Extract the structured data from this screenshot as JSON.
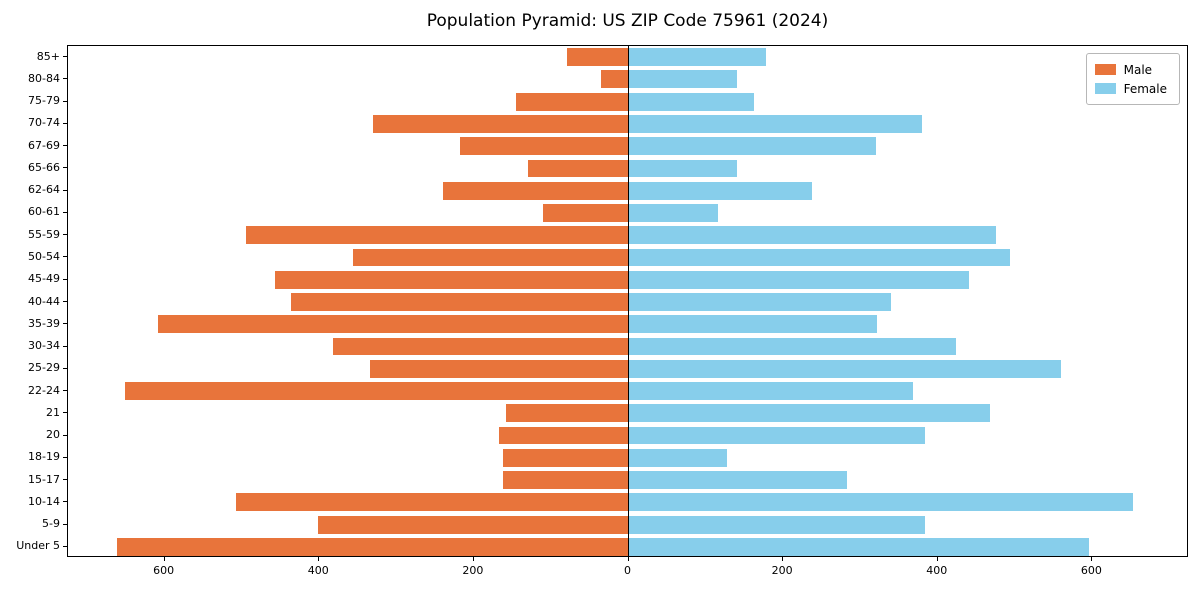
{
  "title": "Population Pyramid: US ZIP Code 75961 (2024)",
  "legend": {
    "male_label": "Male",
    "female_label": "Female"
  },
  "colors": {
    "male": "#e8743b",
    "female": "#87ceeb",
    "axis": "#000000",
    "background": "#ffffff"
  },
  "chart_data": {
    "type": "bar",
    "subtype": "population-pyramid",
    "orientation": "horizontal",
    "title": "Population Pyramid: US ZIP Code 75961 (2024)",
    "xlabel": "",
    "ylabel": "",
    "categories_top_to_bottom": [
      "85+",
      "80-84",
      "75-79",
      "70-74",
      "67-69",
      "65-66",
      "62-64",
      "60-61",
      "55-59",
      "50-54",
      "45-49",
      "40-44",
      "35-39",
      "30-34",
      "25-29",
      "22-24",
      "21",
      "20",
      "18-19",
      "15-17",
      "10-14",
      "5-9",
      "Under 5"
    ],
    "series": [
      {
        "name": "Male",
        "side": "left",
        "color": "#e8743b",
        "values": [
          80,
          36,
          145,
          330,
          218,
          130,
          240,
          110,
          495,
          357,
          457,
          436,
          608,
          382,
          334,
          651,
          158,
          167,
          162,
          162,
          508,
          401,
          661
        ]
      },
      {
        "name": "Female",
        "side": "right",
        "color": "#87ceeb",
        "values": [
          178,
          140,
          162,
          380,
          320,
          140,
          237,
          116,
          475,
          494,
          440,
          339,
          321,
          423,
          560,
          368,
          467,
          383,
          128,
          282,
          652,
          383,
          596
        ]
      }
    ],
    "x_tick_values": [
      -600,
      -400,
      -200,
      0,
      200,
      400,
      600
    ],
    "x_tick_labels": [
      "600",
      "400",
      "200",
      "0",
      "200",
      "400",
      "600"
    ],
    "xlim": [
      -725,
      725
    ],
    "grid": false,
    "legend_position": "upper right",
    "legend_entries": [
      "Male",
      "Female"
    ]
  }
}
